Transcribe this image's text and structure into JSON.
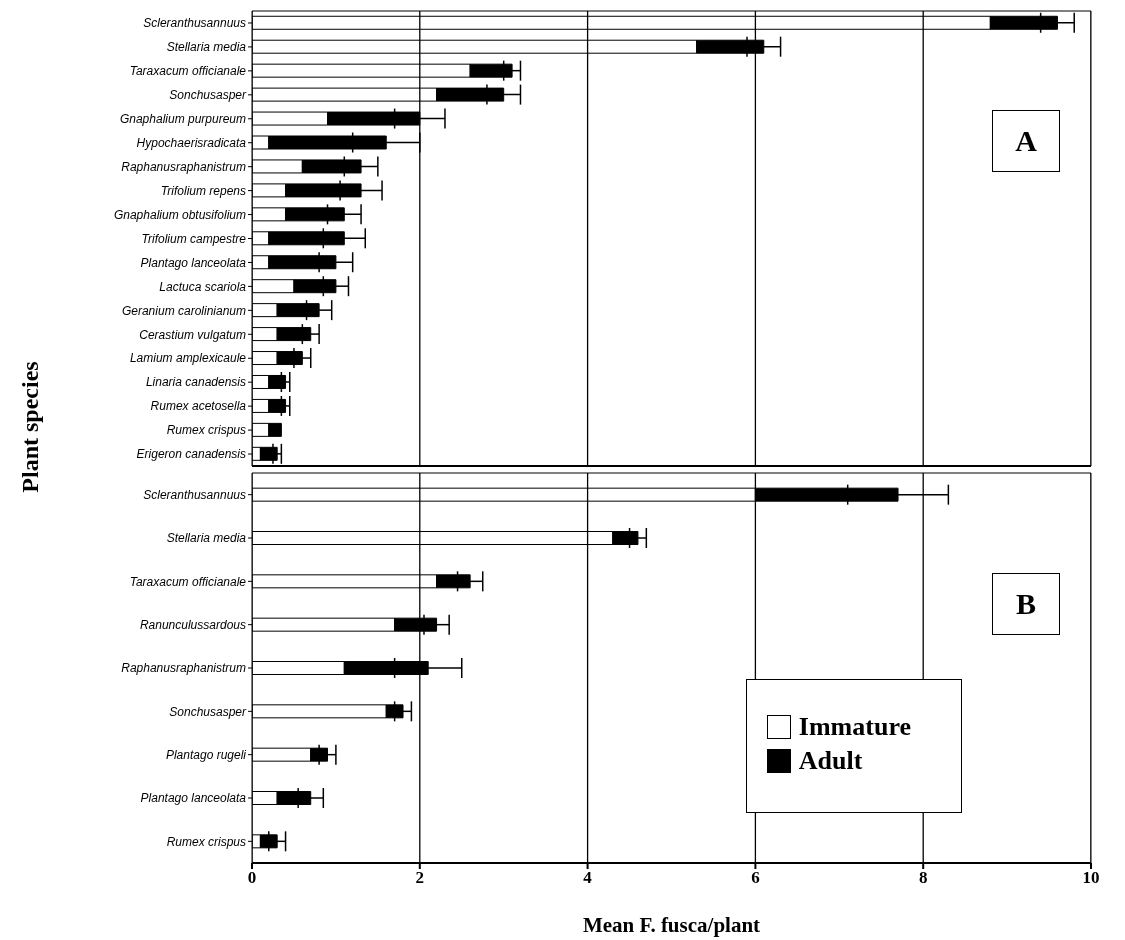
{
  "chart_data": [
    {
      "type": "bar",
      "orientation": "horizontal",
      "stacked": true,
      "ylabel": "Plant species",
      "categories": [
        "Scleranthusannuus",
        "Stellaria media",
        "Taraxacum officianale",
        "Sonchusasper",
        "Gnaphalium purpureum",
        "Hypochaerisradicata",
        "Raphanusraphanistrum",
        "Trifolium repens",
        "Gnaphalium obtusifolium",
        "Trifolium campestre",
        "Plantago lanceolata",
        "Lactuca scariola",
        "Geranium carolinianum",
        "Cerastium vulgatum",
        "Lamium amplexicaule",
        "Linaria canadensis",
        "Rumex acetosella",
        "Rumex crispus",
        "Erigeron canadensis"
      ],
      "series": [
        {
          "color": "#ffffff",
          "values": [
            8.8,
            5.3,
            2.6,
            2.2,
            0.9,
            0.2,
            0.6,
            0.4,
            0.4,
            0.2,
            0.2,
            0.5,
            0.3,
            0.3,
            0.3,
            0.2,
            0.2,
            0.2,
            0.1
          ]
        },
        {
          "color": "#000000",
          "values": [
            0.8,
            0.8,
            0.5,
            0.8,
            1.1,
            1.4,
            0.7,
            0.9,
            0.7,
            0.9,
            0.8,
            0.5,
            0.5,
            0.4,
            0.3,
            0.2,
            0.2,
            0.15,
            0.2
          ],
          "errors": [
            0.2,
            0.2,
            0.1,
            0.2,
            0.3,
            0.4,
            0.2,
            0.25,
            0.2,
            0.25,
            0.2,
            0.15,
            0.15,
            0.1,
            0.1,
            0.05,
            0.05,
            null,
            0.05
          ]
        }
      ],
      "xlim": [
        0,
        10
      ],
      "xticks": [
        0,
        2,
        4,
        6,
        8,
        10
      ],
      "grid": "x",
      "tick_labels": "y",
      "annotations": [
        "A"
      ]
    },
    {
      "type": "bar",
      "orientation": "horizontal",
      "stacked": true,
      "xlabel": "Mean F. fusca/plant",
      "categories": [
        "Scleranthusannuus",
        "Stellaria media",
        "Taraxacum officianale",
        "Ranunculussardous",
        "Raphanusraphanistrum",
        "Sonchusasper",
        "Plantago rugeli",
        "Plantago lanceolata",
        "Rumex crispus"
      ],
      "series": [
        {
          "name": "Immature",
          "color": "#ffffff",
          "values": [
            6.0,
            4.3,
            2.2,
            1.7,
            1.1,
            1.6,
            0.7,
            0.3,
            0.1
          ]
        },
        {
          "name": "Adult",
          "color": "#000000",
          "values": [
            1.7,
            0.3,
            0.4,
            0.5,
            1.0,
            0.2,
            0.2,
            0.4,
            0.2
          ],
          "errors": [
            0.6,
            0.1,
            0.15,
            0.15,
            0.4,
            0.1,
            0.1,
            0.15,
            0.1
          ]
        }
      ],
      "xlim": [
        0,
        10
      ],
      "xticks": [
        0,
        2,
        4,
        6,
        8,
        10
      ],
      "grid": "x",
      "legend": "bottom right",
      "annotations": [
        "B"
      ]
    }
  ]
}
